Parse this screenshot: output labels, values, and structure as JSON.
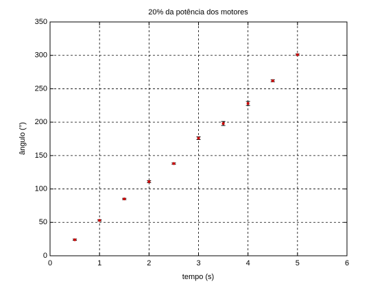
{
  "chart_data": {
    "type": "errorbar",
    "title": "20% da potência dos motores",
    "x_label": "tempo (s)",
    "y_label": "ângulo (°)",
    "x": [
      0.5,
      1,
      1.5,
      2,
      2.5,
      3,
      3.5,
      4,
      4.5,
      5
    ],
    "values": [
      24,
      53,
      85,
      111,
      138,
      176,
      198,
      228,
      262,
      301
    ],
    "errors": [
      1,
      1,
      1,
      1.5,
      1,
      2,
      3,
      3,
      1.5,
      1
    ],
    "color": "#cc0000",
    "error_color": "#000000",
    "xlim": [
      0,
      6
    ],
    "xticks": [
      0,
      1,
      2,
      3,
      4,
      5,
      6
    ],
    "ylim": [
      0,
      350
    ],
    "yticks": [
      0,
      50,
      100,
      150,
      200,
      250,
      300,
      350
    ],
    "grid": true
  }
}
